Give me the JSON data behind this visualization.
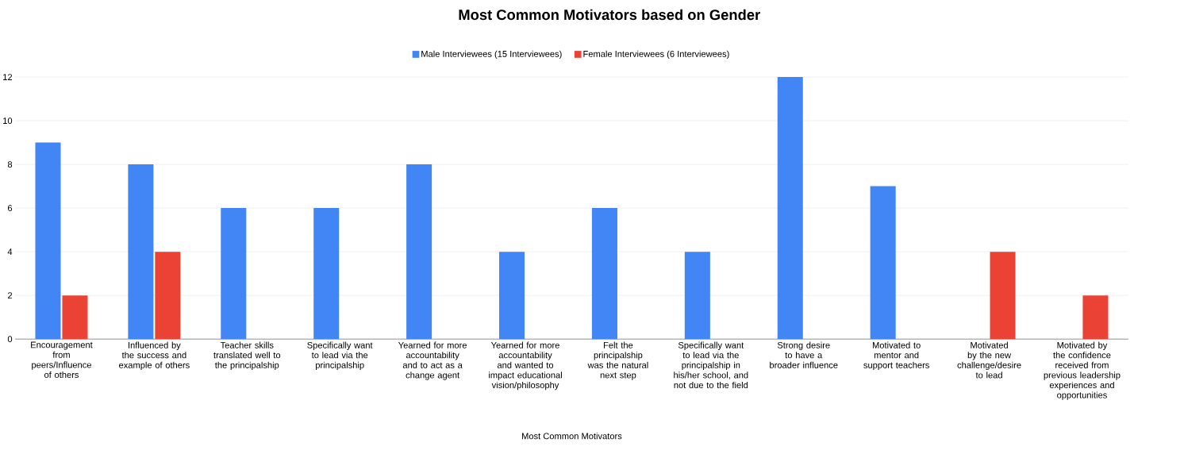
{
  "chart_data": {
    "type": "bar",
    "title": "Most Common Motivators based on Gender",
    "xlabel": "Most Common Motivators",
    "categories": [
      "Encouragement from peers/Influence of others",
      "Influenced by the success and example of others",
      "Teacher skills translated well to the principalship",
      "Specifically want to lead via the principalship",
      "Yearned for more accountability and to act as a change agent",
      "Yearned for more accountability and wanted to impact educational vision/philosophy",
      "Felt the principalship was the natural next step",
      "Specifically want to lead via the principalship in his/her school, and not due to the field",
      "Strong desire to have a broader influence",
      "Motivated to mentor and support teachers",
      "Motivated by the new challenge/desire to lead",
      "Motivated by the confidence received from previous leadership experiences and opportunities"
    ],
    "series": [
      {
        "name": "Male Interviewees (15 Interviewees)",
        "color": "#4285f4",
        "values": [
          9,
          8,
          6,
          6,
          8,
          4,
          6,
          4,
          12,
          7,
          null,
          null
        ]
      },
      {
        "name": "Female Interviewees (6 Interviewees)",
        "color": "#ea4335",
        "values": [
          2,
          4,
          null,
          null,
          null,
          null,
          null,
          null,
          null,
          null,
          4,
          2
        ]
      }
    ],
    "ylim": [
      0,
      12
    ],
    "yticks": [
      0,
      2,
      4,
      6,
      8,
      10,
      12
    ],
    "grid": "y",
    "legend": "top"
  }
}
